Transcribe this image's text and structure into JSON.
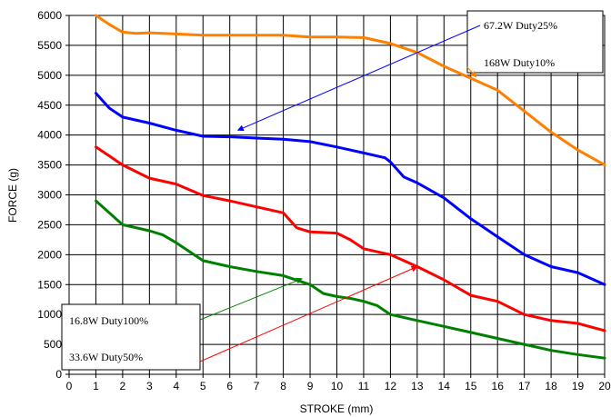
{
  "chart_data": {
    "type": "line",
    "xlabel": "STROKE (mm)",
    "ylabel": "FORCE (g)",
    "xlim": [
      0,
      20
    ],
    "ylim": [
      0,
      6000
    ],
    "xticks": [
      0,
      1,
      2,
      3,
      4,
      5,
      6,
      7,
      8,
      9,
      10,
      11,
      12,
      13,
      14,
      15,
      16,
      17,
      18,
      19,
      20
    ],
    "yticks": [
      0,
      500,
      1000,
      1500,
      2000,
      2500,
      3000,
      3500,
      4000,
      4500,
      5000,
      5500,
      6000
    ],
    "grid": true,
    "series": [
      {
        "name": "168W Dty10%",
        "color": "#ff7f00",
        "points": [
          [
            1,
            6000
          ],
          [
            1.5,
            5850
          ],
          [
            2,
            5720
          ],
          [
            2.5,
            5700
          ],
          [
            3,
            5710
          ],
          [
            4,
            5690
          ],
          [
            5,
            5670
          ],
          [
            6,
            5670
          ],
          [
            7,
            5670
          ],
          [
            8,
            5670
          ],
          [
            9,
            5640
          ],
          [
            10,
            5640
          ],
          [
            11,
            5630
          ],
          [
            12,
            5530
          ],
          [
            13,
            5380
          ],
          [
            14,
            5150
          ],
          [
            15,
            4950
          ],
          [
            16,
            4750
          ],
          [
            17,
            4400
          ],
          [
            18,
            4050
          ],
          [
            19,
            3750
          ],
          [
            20,
            3500
          ]
        ]
      },
      {
        "name": "67.2W Dty25%",
        "color": "#0000ff",
        "points": [
          [
            1,
            4700
          ],
          [
            1.5,
            4450
          ],
          [
            2,
            4300
          ],
          [
            3,
            4200
          ],
          [
            4,
            4080
          ],
          [
            5,
            3980
          ],
          [
            6,
            3970
          ],
          [
            7,
            3950
          ],
          [
            8,
            3930
          ],
          [
            9,
            3890
          ],
          [
            10,
            3800
          ],
          [
            11,
            3700
          ],
          [
            11.8,
            3620
          ],
          [
            12,
            3550
          ],
          [
            12.5,
            3300
          ],
          [
            13,
            3200
          ],
          [
            14,
            2950
          ],
          [
            15,
            2600
          ],
          [
            16,
            2300
          ],
          [
            17,
            2000
          ],
          [
            18,
            1800
          ],
          [
            19,
            1700
          ],
          [
            20,
            1500
          ]
        ]
      },
      {
        "name": "33.6W Dty50%",
        "color": "#ff0000",
        "points": [
          [
            1,
            3800
          ],
          [
            2,
            3500
          ],
          [
            3,
            3280
          ],
          [
            4,
            3180
          ],
          [
            5,
            2990
          ],
          [
            6,
            2900
          ],
          [
            7,
            2800
          ],
          [
            8,
            2700
          ],
          [
            8.5,
            2450
          ],
          [
            9,
            2380
          ],
          [
            10,
            2360
          ],
          [
            10.5,
            2250
          ],
          [
            11,
            2100
          ],
          [
            12,
            2000
          ],
          [
            13,
            1800
          ],
          [
            14,
            1580
          ],
          [
            14.5,
            1450
          ],
          [
            15,
            1320
          ],
          [
            16,
            1220
          ],
          [
            17,
            1000
          ],
          [
            18,
            900
          ],
          [
            19,
            850
          ],
          [
            20,
            730
          ]
        ]
      },
      {
        "name": "16.8W Dty100%",
        "color": "#008000",
        "points": [
          [
            1,
            2900
          ],
          [
            1.5,
            2700
          ],
          [
            2,
            2500
          ],
          [
            3,
            2400
          ],
          [
            3.5,
            2330
          ],
          [
            4,
            2200
          ],
          [
            5,
            1900
          ],
          [
            6,
            1800
          ],
          [
            7,
            1720
          ],
          [
            8,
            1650
          ],
          [
            9,
            1500
          ],
          [
            9.5,
            1350
          ],
          [
            10,
            1300
          ],
          [
            10.5,
            1270
          ],
          [
            11,
            1220
          ],
          [
            11.5,
            1150
          ],
          [
            12,
            1000
          ],
          [
            13,
            900
          ],
          [
            14,
            800
          ],
          [
            15,
            700
          ],
          [
            16,
            600
          ],
          [
            17,
            500
          ],
          [
            18,
            400
          ],
          [
            19,
            330
          ],
          [
            20,
            270
          ]
        ]
      }
    ],
    "annotations": [
      {
        "label": "67.2W  Duty25%",
        "target": [
          6.3,
          4080
        ],
        "color": "#0000ff"
      },
      {
        "label": "168W  Duty10%",
        "target": [
          15.2,
          4970
        ],
        "color": "#ff7f00"
      },
      {
        "label": "16.8W  Duty100%",
        "target": [
          8.7,
          1600
        ],
        "color": "#008000"
      },
      {
        "label": "33.6W  Duty50%",
        "target": [
          13,
          1800
        ],
        "color": "#ff0000"
      }
    ]
  }
}
